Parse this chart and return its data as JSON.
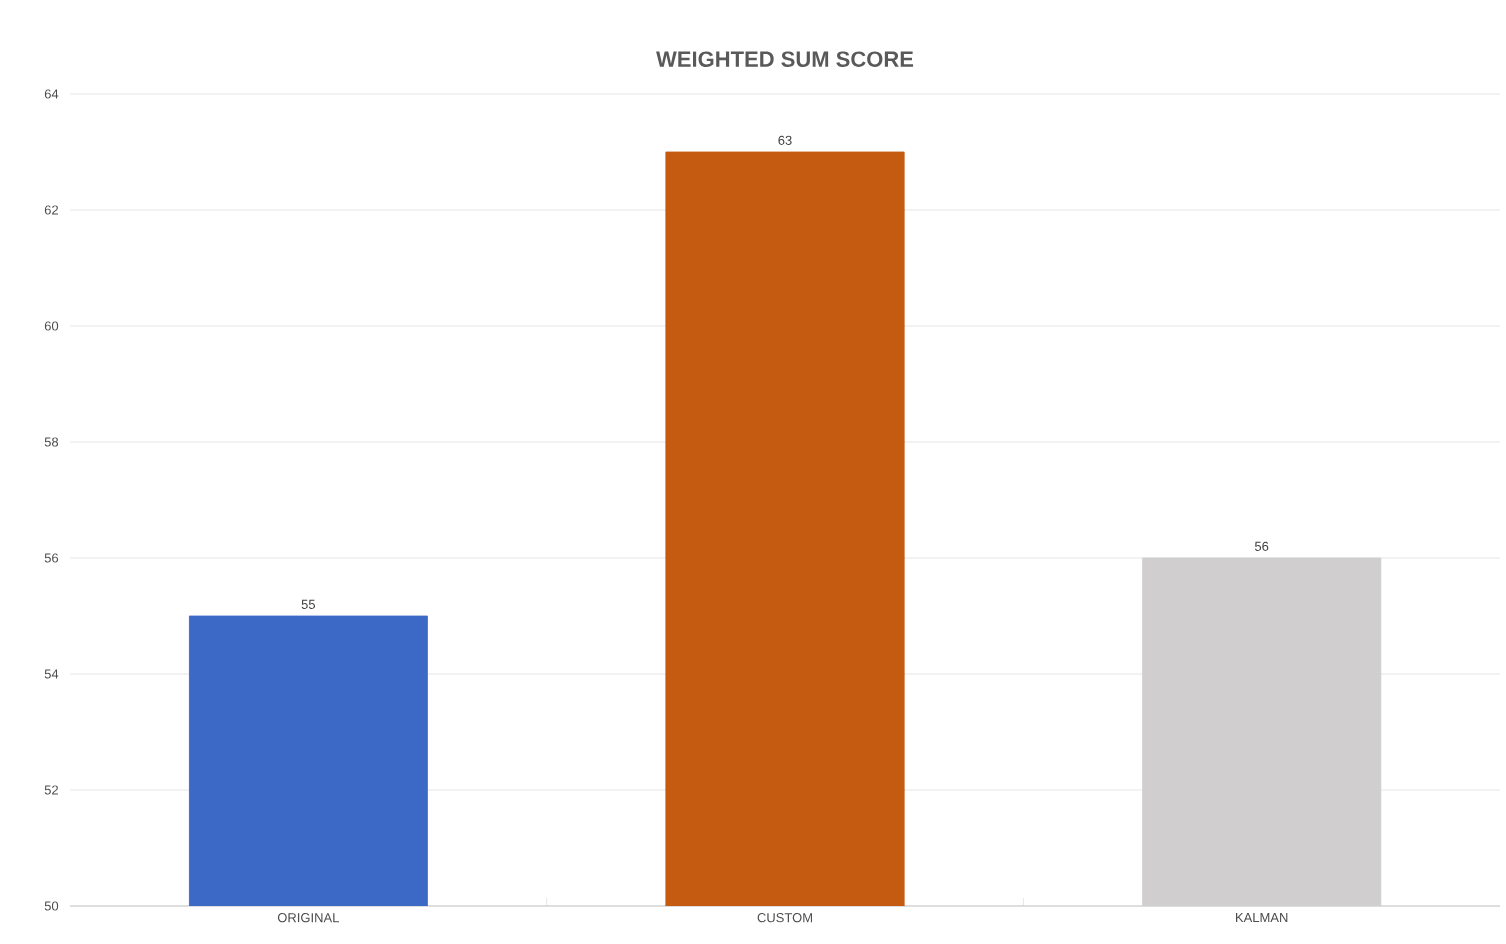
{
  "chart_data": {
    "type": "bar",
    "title": "WEIGHTED SUM SCORE",
    "categories": [
      "ORIGINAL",
      "CUSTOM",
      "KALMAN"
    ],
    "values": [
      55,
      63,
      56
    ],
    "colors": [
      "#3c69c6",
      "#c55a11",
      "#d0cece"
    ],
    "ylim": [
      50,
      64
    ],
    "yticks": [
      50,
      52,
      54,
      56,
      58,
      60,
      62,
      64
    ],
    "grid": "y",
    "data_labels": true
  }
}
